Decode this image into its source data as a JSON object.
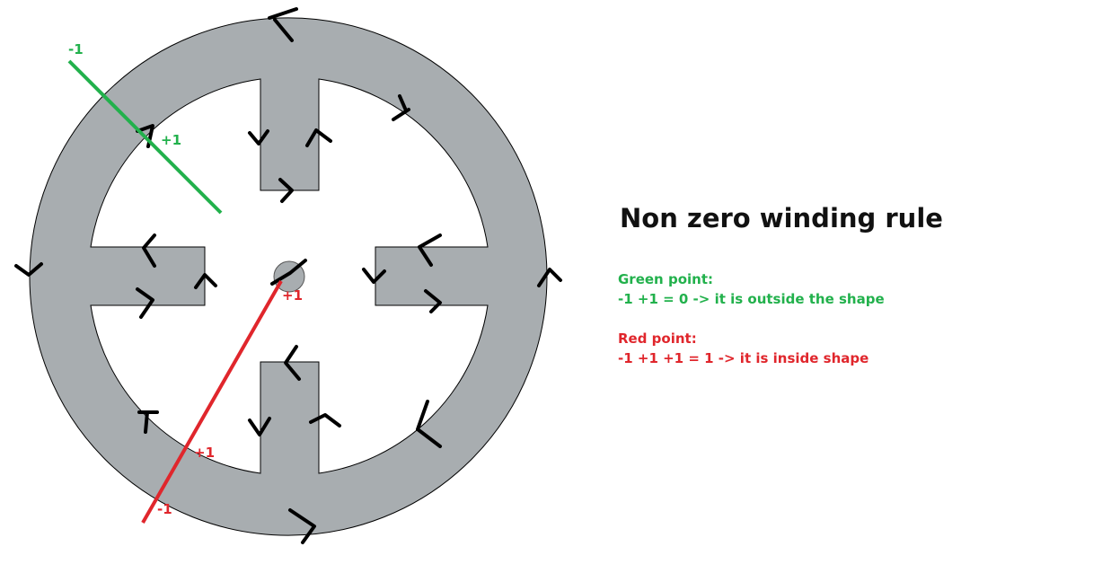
{
  "colors": {
    "shape_fill": "#a8adb0",
    "arrow": "#000000",
    "green": "#22b14c",
    "red": "#e0262c"
  },
  "diagram": {
    "green_labels": {
      "start": "-1",
      "crossing": "+1"
    },
    "red_labels": {
      "start": "-1",
      "crossing1": "+1",
      "crossing2": "+1"
    }
  },
  "explanation": {
    "title": "Non zero winding rule",
    "green": {
      "heading": "Green point:",
      "formula": "-1 +1 = 0 -> it is outside the shape"
    },
    "red": {
      "heading": "Red point:",
      "formula": "-1 +1 +1 = 1 -> it is inside shape"
    }
  }
}
